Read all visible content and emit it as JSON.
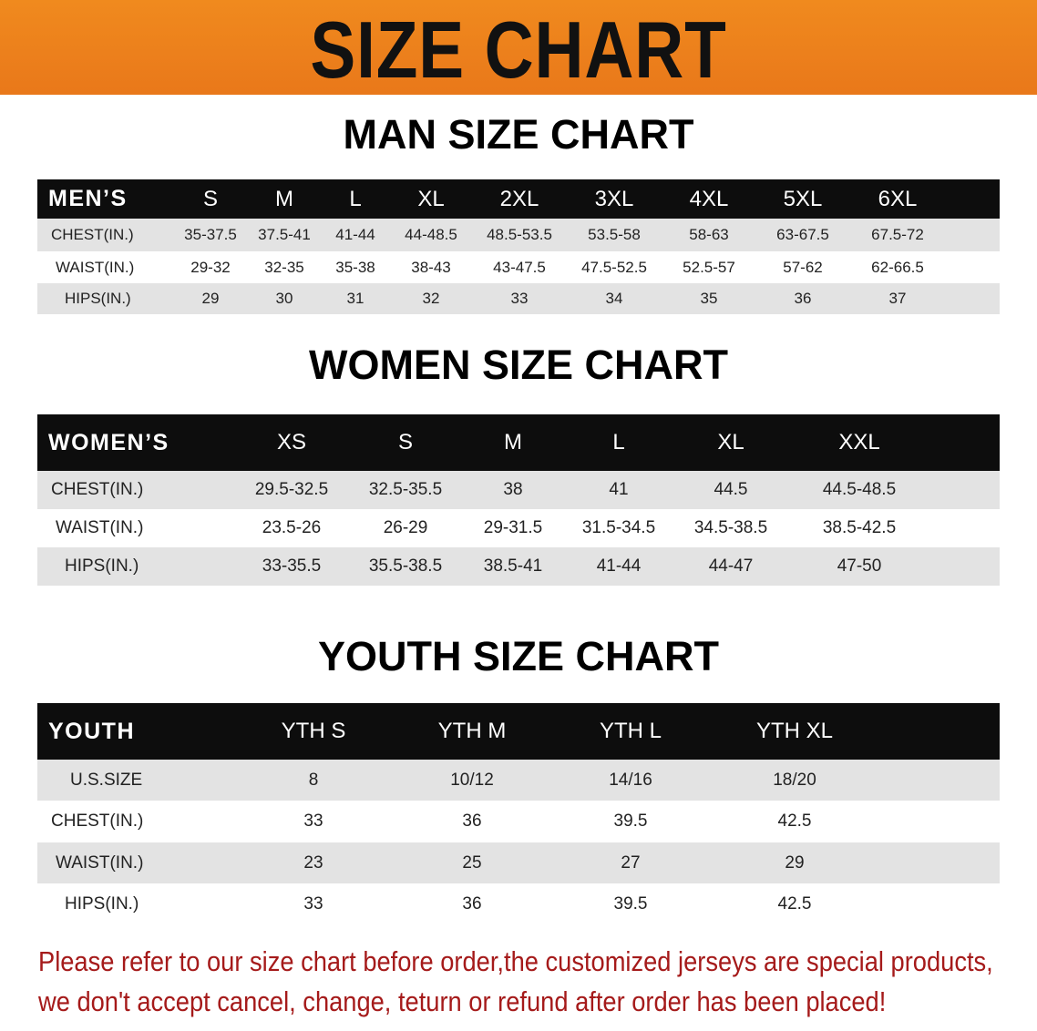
{
  "banner_title": "SIZE CHART",
  "men": {
    "title": "MAN SIZE CHART",
    "header_label": "MEN’S",
    "sizes": [
      "S",
      "M",
      "L",
      "XL",
      "2XL",
      "3XL",
      "4XL",
      "5XL",
      "6XL"
    ],
    "rows": [
      {
        "label": "CHEST(IN.)",
        "values": [
          "35-37.5",
          "37.5-41",
          "41-44",
          "44-48.5",
          "48.5-53.5",
          "53.5-58",
          "58-63",
          "63-67.5",
          "67.5-72"
        ]
      },
      {
        "label": "WAIST(IN.)",
        "values": [
          "29-32",
          "32-35",
          "35-38",
          "38-43",
          "43-47.5",
          "47.5-52.5",
          "52.5-57",
          "57-62",
          "62-66.5"
        ]
      },
      {
        "label": "HIPS(IN.)",
        "values": [
          "29",
          "30",
          "31",
          "32",
          "33",
          "34",
          "35",
          "36",
          "37"
        ]
      }
    ]
  },
  "women": {
    "title": "WOMEN SIZE CHART",
    "header_label": "WOMEN’S",
    "sizes": [
      "XS",
      "S",
      "M",
      "L",
      "XL",
      "XXL"
    ],
    "rows": [
      {
        "label": "CHEST(IN.)",
        "values": [
          "29.5-32.5",
          "32.5-35.5",
          "38",
          "41",
          "44.5",
          "44.5-48.5"
        ]
      },
      {
        "label": "WAIST(IN.)",
        "values": [
          "23.5-26",
          "26-29",
          "29-31.5",
          "31.5-34.5",
          "34.5-38.5",
          "38.5-42.5"
        ]
      },
      {
        "label": "HIPS(IN.)",
        "values": [
          "33-35.5",
          "35.5-38.5",
          "38.5-41",
          "41-44",
          "44-47",
          "47-50"
        ]
      }
    ]
  },
  "youth": {
    "title": "YOUTH SIZE CHART",
    "header_label": "YOUTH",
    "sizes": [
      "YTH S",
      "YTH M",
      "YTH L",
      "YTH XL"
    ],
    "rows": [
      {
        "label": "U.S.SIZE",
        "values": [
          "8",
          "10/12",
          "14/16",
          "18/20"
        ]
      },
      {
        "label": "CHEST(IN.)",
        "values": [
          "33",
          "36",
          "39.5",
          "42.5"
        ]
      },
      {
        "label": "WAIST(IN.)",
        "values": [
          "23",
          "25",
          "27",
          "29"
        ]
      },
      {
        "label": "HIPS(IN.)",
        "values": [
          "33",
          "36",
          "39.5",
          "42.5"
        ]
      }
    ]
  },
  "notice": {
    "line1": "Please refer to our size chart before order,the customized jerseys are special products,",
    "line2": "we don't accept cancel, change, teturn or refund after order has been placed!",
    "color": "#a51a1a"
  },
  "colors": {
    "banner": "#ec7f1c",
    "header": "#0d0d0d",
    "stripe": "#e3e3e3"
  }
}
